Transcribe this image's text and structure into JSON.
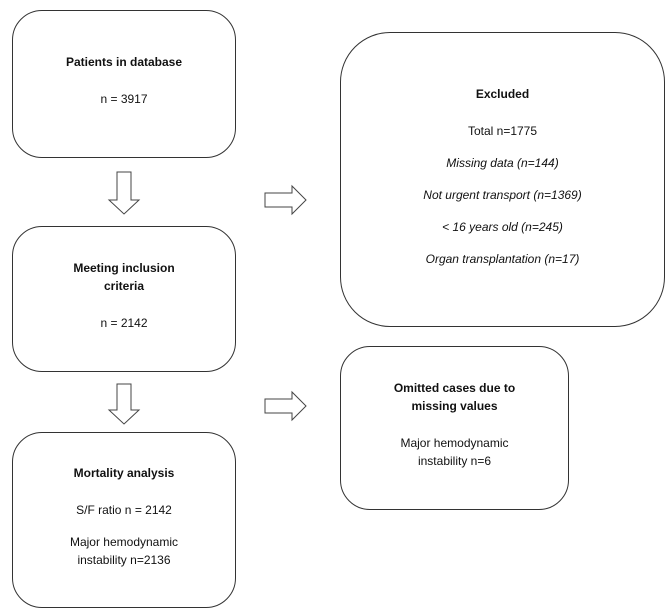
{
  "nodes": [
    {
      "title": "Patients in database",
      "items": [
        {
          "text": "n = 3917",
          "italic": false
        }
      ]
    },
    {
      "title": "Meeting inclusion criteria",
      "items": [
        {
          "text": "n = 2142",
          "italic": false
        }
      ]
    },
    {
      "title": "Mortality analysis",
      "items": [
        {
          "text": "S/F ratio n = 2142",
          "italic": false
        },
        {
          "text": "Major hemodynamic instability n=2136",
          "italic": false
        }
      ]
    },
    {
      "title": "Excluded",
      "items": [
        {
          "text": "Total n=1775",
          "italic": false
        },
        {
          "text": "Missing data (n=144)",
          "italic": true
        },
        {
          "text": "Not urgent transport (n=1369)",
          "italic": true
        },
        {
          "text": "< 16 years old (n=245)",
          "italic": true
        },
        {
          "text": "Organ transplantation (n=17)",
          "italic": true
        }
      ]
    },
    {
      "title": "Omitted cases due to missing values",
      "items": [
        {
          "text": "Major hemodynamic instability n=6",
          "italic": false
        }
      ]
    }
  ]
}
